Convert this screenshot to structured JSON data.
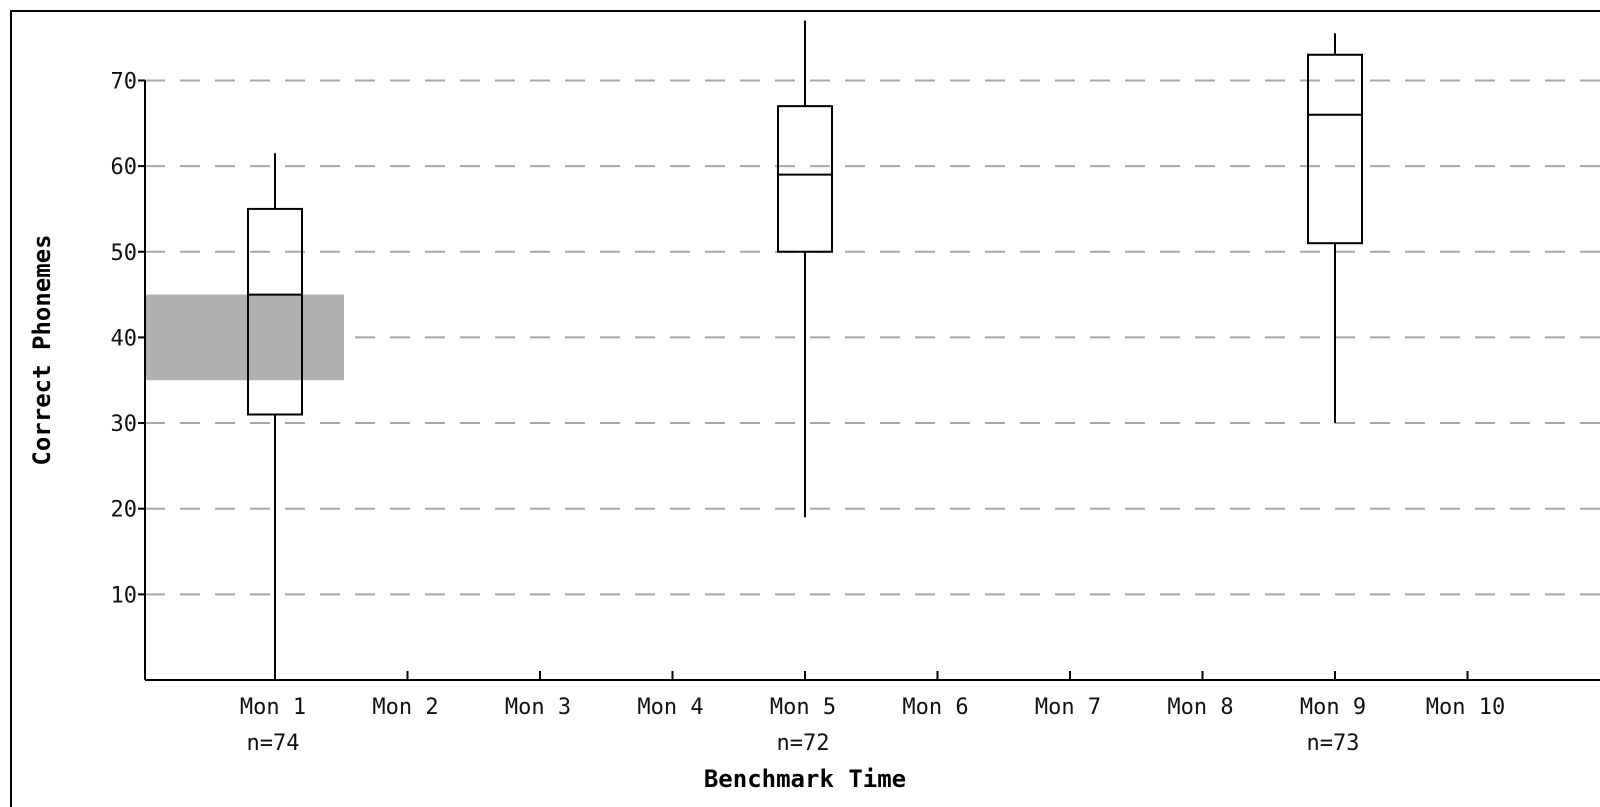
{
  "chart_data": {
    "type": "box",
    "xlabel": "Benchmark Time",
    "ylabel": "Correct Phonemes",
    "categories": [
      "Mon 1",
      "Mon 2",
      "Mon 3",
      "Mon 4",
      "Mon 5",
      "Mon 6",
      "Mon 7",
      "Mon 8",
      "Mon 9",
      "Mon 10"
    ],
    "y_ticks": [
      10,
      20,
      30,
      40,
      50,
      60,
      70
    ],
    "ylim": [
      0,
      77
    ],
    "grid": "horizontal dashed",
    "boxes": [
      {
        "category": "Mon 1",
        "n_label": "n=74",
        "min": 1,
        "q1": 31,
        "median": 45,
        "q3": 55,
        "max": 61.5
      },
      {
        "category": "Mon 5",
        "n_label": "n=72",
        "min": 19,
        "q1": 50,
        "median": 59,
        "q3": 67,
        "max": 77
      },
      {
        "category": "Mon 9",
        "n_label": "n=73",
        "min": 30,
        "q1": 51,
        "median": 66,
        "q3": 73,
        "max": 75.5
      }
    ],
    "target_band": {
      "category": "Mon 1",
      "low": 35,
      "high": 45,
      "color": "#b0b0b0"
    },
    "colors": {
      "axis": "#000000",
      "grid": "#a8a8a8",
      "box": "#000000",
      "band": "#b0b0b0"
    }
  }
}
